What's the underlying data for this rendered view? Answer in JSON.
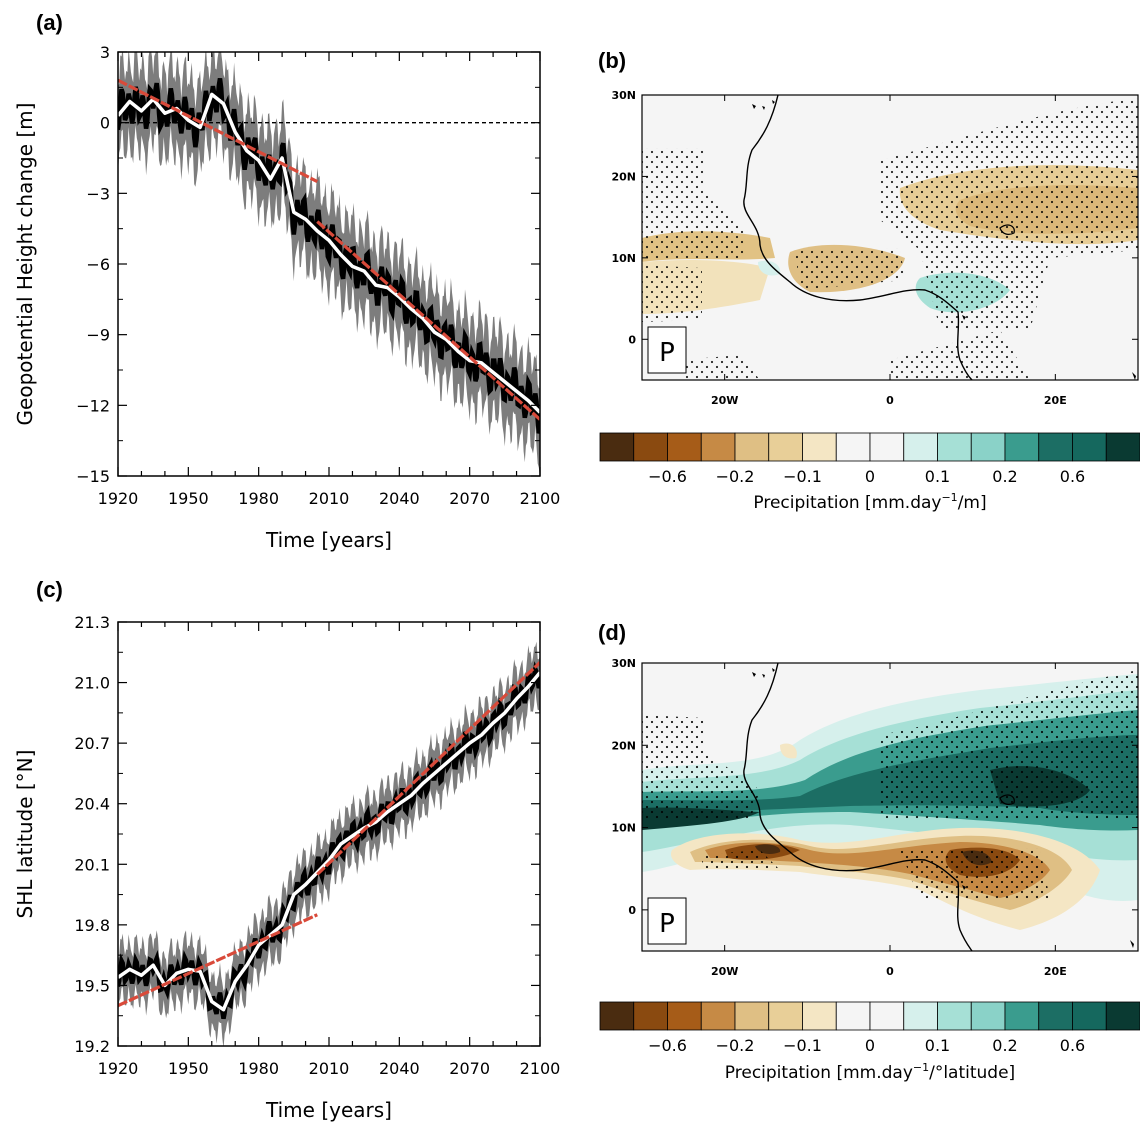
{
  "panels": {
    "a": "(a)",
    "b": "(b)",
    "c": "(c)",
    "d": "(d)"
  },
  "colors": {
    "band": "#7d7d7d",
    "annual": "#000000",
    "smooth": "#ffffff",
    "trend": "#d94a3a"
  },
  "chart_data": [
    {
      "type": "line",
      "panel": "(a)",
      "xlabel": "Time [years]",
      "ylabel": "Geopotential Height change [m]",
      "xlim": [
        1920,
        2100
      ],
      "ylim": [
        -15,
        3
      ],
      "xticks": [
        "1920",
        "1950",
        "1980",
        "2010",
        "2040",
        "2070",
        "2100"
      ],
      "yticks": [
        "3",
        "0",
        "−3",
        "−6",
        "−9",
        "−12",
        "−15"
      ],
      "reference_line": 0,
      "smooth": {
        "x": [
          1920,
          1925,
          1930,
          1935,
          1940,
          1945,
          1950,
          1955,
          1960,
          1965,
          1970,
          1975,
          1980,
          1985,
          1990,
          1995,
          2000,
          2005,
          2010,
          2015,
          2020,
          2025,
          2030,
          2035,
          2040,
          2045,
          2050,
          2055,
          2060,
          2065,
          2070,
          2075,
          2080,
          2085,
          2090,
          2095,
          2100
        ],
        "y": [
          0.3,
          0.9,
          0.5,
          1.0,
          0.4,
          0.6,
          0.1,
          -0.2,
          1.2,
          0.8,
          -0.4,
          -1.2,
          -1.6,
          -2.4,
          -1.5,
          -3.8,
          -4.1,
          -4.6,
          -5.0,
          -5.6,
          -6.1,
          -6.3,
          -6.9,
          -7.0,
          -7.4,
          -7.9,
          -8.3,
          -8.9,
          -9.2,
          -9.7,
          -10.1,
          -10.2,
          -10.6,
          -11.0,
          -11.4,
          -11.8,
          -12.3
        ]
      },
      "band_halfwidth": 2.0,
      "trends": [
        {
          "x": [
            1920,
            2005
          ],
          "y": [
            1.8,
            -2.5
          ]
        },
        {
          "x": [
            2005,
            2100
          ],
          "y": [
            -4.2,
            -12.6
          ]
        }
      ]
    },
    {
      "type": "line",
      "panel": "(c)",
      "xlabel": "Time [years]",
      "ylabel": "SHL latitude [°N]",
      "xlim": [
        1920,
        2100
      ],
      "ylim": [
        19.2,
        21.3
      ],
      "xticks": [
        "1920",
        "1950",
        "1980",
        "2010",
        "2040",
        "2070",
        "2100"
      ],
      "yticks": [
        "21.3",
        "21.0",
        "20.7",
        "20.4",
        "20.1",
        "19.8",
        "19.5",
        "19.2"
      ],
      "smooth": {
        "x": [
          1920,
          1925,
          1930,
          1935,
          1940,
          1945,
          1950,
          1955,
          1960,
          1965,
          1970,
          1975,
          1980,
          1985,
          1990,
          1995,
          2000,
          2005,
          2010,
          2015,
          2020,
          2025,
          2030,
          2035,
          2040,
          2045,
          2050,
          2055,
          2060,
          2065,
          2070,
          2075,
          2080,
          2085,
          2090,
          2095,
          2100
        ],
        "y": [
          19.54,
          19.58,
          19.55,
          19.6,
          19.5,
          19.56,
          19.58,
          19.57,
          19.42,
          19.38,
          19.52,
          19.6,
          19.7,
          19.75,
          19.8,
          19.95,
          20.0,
          20.06,
          20.12,
          20.2,
          20.24,
          20.28,
          20.31,
          20.36,
          20.4,
          20.44,
          20.5,
          20.55,
          20.6,
          20.65,
          20.7,
          20.74,
          20.8,
          20.85,
          20.92,
          20.98,
          21.05
        ]
      },
      "band_halfwidth": 0.15,
      "trends": [
        {
          "x": [
            1920,
            2005
          ],
          "y": [
            19.4,
            19.85
          ]
        },
        {
          "x": [
            2005,
            2100
          ],
          "y": [
            20.05,
            21.1
          ]
        }
      ]
    },
    {
      "type": "heatmap",
      "panel": "(b)",
      "variable": "P",
      "xticks": [
        "20W",
        "0",
        "20E"
      ],
      "yticks": [
        "30N",
        "20N",
        "10N",
        "0"
      ],
      "colorbar": {
        "title": "Precipitation [mm.day",
        "title_sup": "−1",
        "title_end": "/m]",
        "ticks": [
          "−0.6",
          "−0.2",
          "−0.1",
          "0",
          "0.1",
          "0.2",
          "0.6"
        ]
      }
    },
    {
      "type": "heatmap",
      "panel": "(d)",
      "variable": "P",
      "xticks": [
        "20W",
        "0",
        "20E"
      ],
      "yticks": [
        "30N",
        "20N",
        "10N",
        "0"
      ],
      "colorbar": {
        "title": "Precipitation [mm.day",
        "title_sup": "−1",
        "title_end": "/°latitude]",
        "ticks": [
          "−0.6",
          "−0.2",
          "−0.1",
          "0",
          "0.1",
          "0.2",
          "0.6"
        ]
      }
    }
  ],
  "colorbar_colors": [
    "#4a2c10",
    "#8a4a10",
    "#a65c18",
    "#c68a45",
    "#dfbf84",
    "#e8cf98",
    "#f4e6c4",
    "#f5f5f5",
    "#f5f5f5",
    "#d6f0ec",
    "#a6e0d6",
    "#8ad2c8",
    "#3a9c8e",
    "#1c6e64",
    "#15685e",
    "#0a3a32"
  ]
}
